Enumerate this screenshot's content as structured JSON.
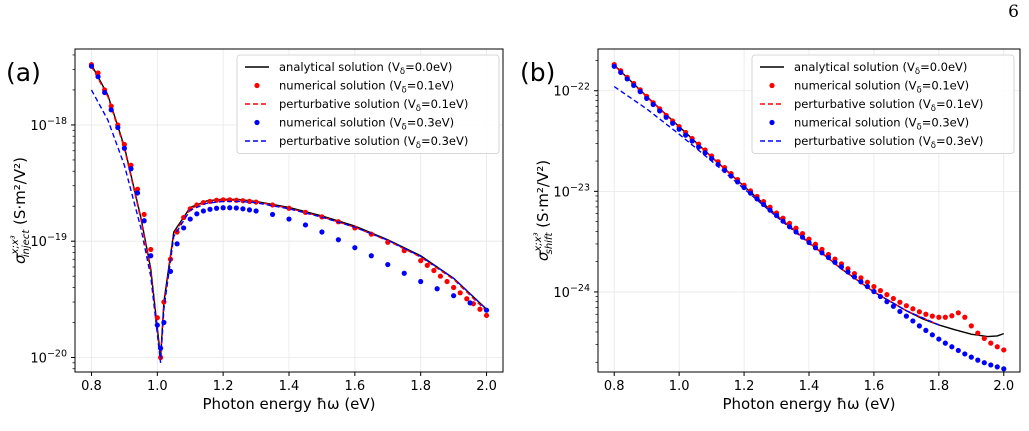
{
  "page": {
    "number": "6"
  },
  "chart_data": [
    {
      "type": "line",
      "panel_label": "(a)",
      "xlabel": "Photon energy ħω (eV)",
      "ylabel": "σ_inject^{x;x³} (S·m²/V²)",
      "ylabel_main": "σ",
      "ylabel_sub": "inject",
      "ylabel_sup": "x;x³",
      "ylabel_unit": " (S·m²/V²)",
      "yscale": "log",
      "xlim": [
        0.75,
        2.05
      ],
      "ylim": [
        7.5e-21,
        4.5e-18
      ],
      "xticks": [
        0.8,
        1.0,
        1.2,
        1.4,
        1.6,
        1.8,
        2.0
      ],
      "xtick_labels": [
        "0.8",
        "1.0",
        "1.2",
        "1.4",
        "1.6",
        "1.8",
        "2.0"
      ],
      "yticks": [
        1e-20,
        1e-19,
        1e-18
      ],
      "ytick_labels": [
        {
          "base": "10",
          "exp": "−20"
        },
        {
          "base": "10",
          "exp": "−19"
        },
        {
          "base": "10",
          "exp": "−18"
        }
      ],
      "grid": true,
      "legend_position": "top-right",
      "series": [
        {
          "name": "analytical solution (V",
          "name_sub": "δ",
          "name_tail": "=0.0eV)",
          "color": "#000000",
          "style": "solid",
          "marker": "none",
          "x": [
            0.8,
            0.85,
            0.9,
            0.95,
            0.98,
            1.0,
            1.01,
            1.02,
            1.05,
            1.1,
            1.15,
            1.2,
            1.25,
            1.3,
            1.4,
            1.5,
            1.6,
            1.7,
            1.8,
            1.9,
            2.0
          ],
          "y": [
            3.3e-18,
            1.8e-18,
            6.5e-19,
            1.6e-19,
            5.8e-20,
            1.8e-20,
            1e-20,
            3e-20,
            1.2e-19,
            1.95e-19,
            2.22e-19,
            2.3e-19,
            2.28e-19,
            2.2e-19,
            1.95e-19,
            1.65e-19,
            1.35e-19,
            1.03e-19,
            7.5e-20,
            4.8e-20,
            2.6e-20
          ]
        },
        {
          "name": "numerical solution (V",
          "name_sub": "δ",
          "name_tail": "=0.1eV)",
          "color": "#ff0000",
          "style": "none",
          "marker": "circle",
          "x": [
            0.8,
            0.82,
            0.84,
            0.86,
            0.88,
            0.9,
            0.92,
            0.94,
            0.96,
            0.98,
            1.0,
            1.01,
            1.02,
            1.04,
            1.06,
            1.08,
            1.1,
            1.12,
            1.14,
            1.16,
            1.18,
            1.2,
            1.22,
            1.24,
            1.26,
            1.28,
            1.3,
            1.35,
            1.4,
            1.45,
            1.5,
            1.55,
            1.6,
            1.65,
            1.7,
            1.75,
            1.8,
            1.82,
            1.84,
            1.86,
            1.88,
            1.9,
            1.92,
            1.94,
            1.96,
            1.98,
            2.0
          ],
          "y": [
            3.3e-18,
            2.8e-18,
            2e-18,
            1.45e-18,
            1e-18,
            6.8e-19,
            4.5e-19,
            2.8e-19,
            1.7e-19,
            8.5e-20,
            2.2e-20,
            1e-20,
            3e-20,
            7e-20,
            1.2e-19,
            1.6e-19,
            1.9e-19,
            2.05e-19,
            2.15e-19,
            2.2e-19,
            2.25e-19,
            2.27e-19,
            2.27e-19,
            2.25e-19,
            2.23e-19,
            2.2e-19,
            2.17e-19,
            2.05e-19,
            1.92e-19,
            1.77e-19,
            1.62e-19,
            1.47e-19,
            1.3e-19,
            1.15e-19,
            9.8e-20,
            8.3e-20,
            6.8e-20,
            6.2e-20,
            5.6e-20,
            5e-20,
            4.5e-20,
            4e-20,
            3.6e-20,
            3.2e-20,
            2.9e-20,
            2.6e-20,
            2.3e-20
          ]
        },
        {
          "name": "perturbative solution (V",
          "name_sub": "δ",
          "name_tail": "=0.1eV)",
          "color": "#ff0000",
          "style": "dashed",
          "marker": "none",
          "x": [
            0.8,
            0.85,
            0.9,
            0.95,
            0.98,
            1.0,
            1.01,
            1.02,
            1.05,
            1.1,
            1.15,
            1.2,
            1.25,
            1.3,
            1.4,
            1.5,
            1.6,
            1.7,
            1.8,
            1.9,
            2.0
          ],
          "y": [
            3.2e-18,
            1.75e-18,
            6.3e-19,
            1.55e-19,
            5.5e-20,
            1.7e-20,
            9.5e-21,
            2.8e-20,
            1.15e-19,
            1.9e-19,
            2.18e-19,
            2.26e-19,
            2.25e-19,
            2.18e-19,
            1.92e-19,
            1.62e-19,
            1.32e-19,
            1.01e-19,
            7.3e-20,
            4.7e-20,
            2.5e-20
          ]
        },
        {
          "name": "numerical solution (V",
          "name_sub": "δ",
          "name_tail": "=0.3eV)",
          "color": "#0000ff",
          "style": "none",
          "marker": "circle",
          "x": [
            0.8,
            0.82,
            0.84,
            0.86,
            0.88,
            0.9,
            0.92,
            0.94,
            0.96,
            0.98,
            1.0,
            1.01,
            1.02,
            1.04,
            1.06,
            1.08,
            1.1,
            1.12,
            1.14,
            1.16,
            1.18,
            1.2,
            1.22,
            1.24,
            1.26,
            1.28,
            1.3,
            1.35,
            1.4,
            1.45,
            1.5,
            1.55,
            1.6,
            1.65,
            1.7,
            1.75,
            1.8,
            1.85,
            1.9,
            1.95,
            2.0
          ],
          "y": [
            3.2e-18,
            2.6e-18,
            1.9e-18,
            1.35e-18,
            9.5e-19,
            6.3e-19,
            4.2e-19,
            2.6e-19,
            1.5e-19,
            7.5e-20,
            1.9e-20,
            1.2e-20,
            2e-20,
            5.5e-20,
            9.5e-20,
            1.3e-19,
            1.55e-19,
            1.72e-19,
            1.82e-19,
            1.88e-19,
            1.92e-19,
            1.94e-19,
            1.94e-19,
            1.93e-19,
            1.9e-19,
            1.86e-19,
            1.82e-19,
            1.7e-19,
            1.55e-19,
            1.38e-19,
            1.2e-19,
            1.03e-19,
            8.8e-20,
            7.5e-20,
            6.3e-20,
            5.3e-20,
            4.5e-20,
            3.9e-20,
            3.4e-20,
            2.95e-20,
            2.55e-20
          ]
        },
        {
          "name": "perturbative solution (V",
          "name_sub": "δ",
          "name_tail": "=0.3eV)",
          "color": "#0000ff",
          "style": "dashed",
          "marker": "none",
          "x": [
            0.8,
            0.85,
            0.9,
            0.95,
            0.98,
            1.0,
            1.01,
            1.02,
            1.05,
            1.1,
            1.15,
            1.2,
            1.25,
            1.3,
            1.4,
            1.5,
            1.6,
            1.7,
            1.8,
            1.9,
            2.0
          ],
          "y": [
            2e-18,
            1.1e-18,
            4.5e-19,
            1.3e-19,
            5e-20,
            1.6e-20,
            9e-21,
            2.6e-20,
            1.1e-19,
            1.85e-19,
            2.12e-19,
            2.2e-19,
            2.2e-19,
            2.14e-19,
            1.9e-19,
            1.61e-19,
            1.32e-19,
            1.02e-19,
            7.4e-20,
            4.8e-20,
            2.6e-20
          ]
        }
      ]
    },
    {
      "type": "line",
      "panel_label": "(b)",
      "xlabel": "Photon energy ħω (eV)",
      "ylabel": "σ_shift^{x;x³} (S·m²/V²)",
      "ylabel_main": "σ",
      "ylabel_sub": "shift",
      "ylabel_sup": "x;x³",
      "ylabel_unit": " (S·m²/V²)",
      "yscale": "log",
      "xlim": [
        0.75,
        2.05
      ],
      "ylim": [
        1.6e-25,
        2.6e-22
      ],
      "xticks": [
        0.8,
        1.0,
        1.2,
        1.4,
        1.6,
        1.8,
        2.0
      ],
      "xtick_labels": [
        "0.8",
        "1.0",
        "1.2",
        "1.4",
        "1.6",
        "1.8",
        "2.0"
      ],
      "yticks": [
        1e-24,
        1e-23,
        1e-22
      ],
      "ytick_labels": [
        {
          "base": "10",
          "exp": "−24"
        },
        {
          "base": "10",
          "exp": "−23"
        },
        {
          "base": "10",
          "exp": "−22"
        }
      ],
      "grid": true,
      "legend_position": "top-right",
      "series": [
        {
          "name": "analytical solution (V",
          "name_sub": "δ",
          "name_tail": "=0.0eV)",
          "color": "#000000",
          "style": "solid",
          "marker": "none",
          "x": [
            0.8,
            0.9,
            1.0,
            1.1,
            1.2,
            1.3,
            1.4,
            1.5,
            1.6,
            1.7,
            1.75,
            1.8,
            1.85,
            1.9,
            1.95,
            1.98,
            2.0
          ],
          "y": [
            1.8e-22,
            8.8e-23,
            4.4e-23,
            2.2e-23,
            1.12e-23,
            5.8e-24,
            3.1e-24,
            1.7e-24,
            1e-24,
            6.5e-25,
            5.4e-25,
            4.7e-25,
            4.2e-25,
            3.8e-25,
            3.6e-25,
            3.65e-25,
            3.85e-25
          ]
        },
        {
          "name": "numerical solution (V",
          "name_sub": "δ",
          "name_tail": "=0.1eV)",
          "color": "#ff0000",
          "style": "none",
          "marker": "circle",
          "x": [
            0.8,
            0.82,
            0.84,
            0.86,
            0.88,
            0.9,
            0.92,
            0.94,
            0.96,
            0.98,
            1.0,
            1.02,
            1.04,
            1.06,
            1.08,
            1.1,
            1.12,
            1.14,
            1.16,
            1.18,
            1.2,
            1.22,
            1.24,
            1.26,
            1.28,
            1.3,
            1.32,
            1.34,
            1.36,
            1.38,
            1.4,
            1.42,
            1.44,
            1.46,
            1.48,
            1.5,
            1.52,
            1.54,
            1.56,
            1.58,
            1.6,
            1.62,
            1.64,
            1.66,
            1.68,
            1.7,
            1.72,
            1.74,
            1.76,
            1.78,
            1.8,
            1.82,
            1.84,
            1.86,
            1.88,
            1.9,
            1.92,
            1.94,
            1.96,
            1.98,
            2.0
          ],
          "y": [
            1.82e-22,
            1.58e-22,
            1.36e-22,
            1.18e-22,
            1.02e-22,
            8.8e-23,
            7.6e-23,
            6.6e-23,
            5.7e-23,
            5e-23,
            4.4e-23,
            3.85e-23,
            3.35e-23,
            2.95e-23,
            2.58e-23,
            2.25e-23,
            1.97e-23,
            1.72e-23,
            1.5e-23,
            1.31e-23,
            1.15e-23,
            1.01e-23,
            8.9e-24,
            7.9e-24,
            6.95e-24,
            6.1e-24,
            5.4e-24,
            4.8e-24,
            4.3e-24,
            3.8e-24,
            3.35e-24,
            2.98e-24,
            2.65e-24,
            2.36e-24,
            2.12e-24,
            1.9e-24,
            1.7e-24,
            1.52e-24,
            1.38e-24,
            1.25e-24,
            1.13e-24,
            1.03e-24,
            9.4e-25,
            8.6e-25,
            7.9e-25,
            7.3e-25,
            6.8e-25,
            6.35e-25,
            6e-25,
            5.75e-25,
            5.6e-25,
            5.6e-25,
            5.8e-25,
            6.2e-25,
            5.6e-25,
            4.6e-25,
            3.9e-25,
            3.45e-25,
            3.1e-25,
            2.85e-25,
            2.65e-25
          ]
        },
        {
          "name": "perturbative solution (V",
          "name_sub": "δ",
          "name_tail": "=0.1eV)",
          "color": "#ff0000",
          "style": "dashed",
          "marker": "none",
          "x": [
            0.8,
            0.9,
            1.0,
            1.1,
            1.2,
            1.3,
            1.4,
            1.5,
            1.6,
            1.7,
            1.8
          ],
          "y": [
            1.78e-22,
            8.7e-23,
            4.35e-23,
            2.18e-23,
            1.11e-23,
            5.75e-24,
            3.08e-24,
            1.69e-24,
            1e-24,
            6.5e-25,
            4.7e-25
          ]
        },
        {
          "name": "numerical solution (V",
          "name_sub": "δ",
          "name_tail": "=0.3eV)",
          "color": "#0000ff",
          "style": "none",
          "marker": "circle",
          "x": [
            0.8,
            0.82,
            0.84,
            0.86,
            0.88,
            0.9,
            0.92,
            0.94,
            0.96,
            0.98,
            1.0,
            1.02,
            1.04,
            1.06,
            1.08,
            1.1,
            1.12,
            1.14,
            1.16,
            1.18,
            1.2,
            1.22,
            1.24,
            1.26,
            1.28,
            1.3,
            1.32,
            1.34,
            1.36,
            1.38,
            1.4,
            1.42,
            1.44,
            1.46,
            1.48,
            1.5,
            1.52,
            1.54,
            1.56,
            1.58,
            1.6,
            1.62,
            1.64,
            1.66,
            1.68,
            1.7,
            1.72,
            1.74,
            1.76,
            1.78,
            1.8,
            1.82,
            1.84,
            1.86,
            1.88,
            1.9,
            1.92,
            1.94,
            1.96,
            1.98,
            2.0
          ],
          "y": [
            1.75e-22,
            1.52e-22,
            1.31e-22,
            1.13e-22,
            9.8e-23,
            8.4e-23,
            7.3e-23,
            6.3e-23,
            5.45e-23,
            4.75e-23,
            4.15e-23,
            3.62e-23,
            3.16e-23,
            2.76e-23,
            2.42e-23,
            2.12e-23,
            1.85e-23,
            1.62e-23,
            1.42e-23,
            1.24e-23,
            1.09e-23,
            9.6e-24,
            8.4e-24,
            7.4e-24,
            6.5e-24,
            5.75e-24,
            5.05e-24,
            4.45e-24,
            3.95e-24,
            3.5e-24,
            3.1e-24,
            2.75e-24,
            2.45e-24,
            2.2e-24,
            1.97e-24,
            1.78e-24,
            1.58e-24,
            1.41e-24,
            1.26e-24,
            1.13e-24,
            1.01e-24,
            9e-25,
            8e-25,
            7.2e-25,
            6.4e-25,
            5.75e-25,
            5.15e-25,
            4.6e-25,
            4.15e-25,
            3.75e-25,
            3.4e-25,
            3.1e-25,
            2.85e-25,
            2.62e-25,
            2.42e-25,
            2.25e-25,
            2.1e-25,
            1.98e-25,
            1.88e-25,
            1.8e-25,
            1.72e-25
          ]
        },
        {
          "name": "perturbative solution (V",
          "name_sub": "δ",
          "name_tail": "=0.3eV)",
          "color": "#0000ff",
          "style": "dashed",
          "marker": "none",
          "x": [
            0.8,
            0.9,
            1.0,
            1.1,
            1.2,
            1.3,
            1.4,
            1.5,
            1.6,
            1.7,
            1.8
          ],
          "y": [
            1.1e-22,
            6.6e-23,
            3.7e-23,
            2e-23,
            1.06e-23,
            5.6e-24,
            3.05e-24,
            1.69e-24,
            1e-24,
            6.5e-25,
            4.7e-25
          ]
        }
      ]
    }
  ]
}
